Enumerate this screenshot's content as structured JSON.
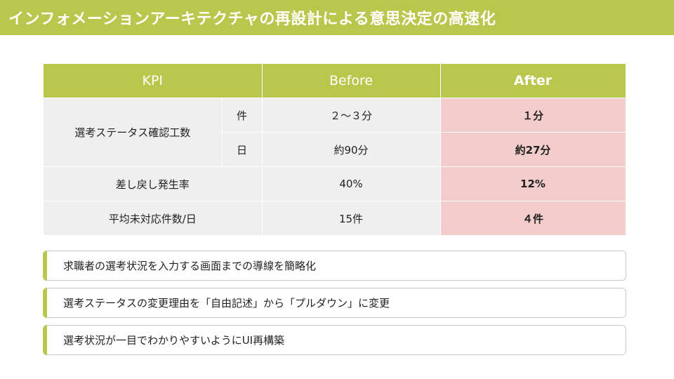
{
  "title": "インフォメーションアーキテクチャの再設計による意思決定の高速化",
  "table": {
    "headers": {
      "kpi": "KPI",
      "before": "Before",
      "after": "After"
    },
    "rows": [
      {
        "kpi": "選考ステータス確認工数",
        "unit": "件",
        "before": "２～３分",
        "after": "１分"
      },
      {
        "unit": "日",
        "before": "約90分",
        "after": "約27分"
      },
      {
        "kpi": "差し戻し発生率",
        "before": "40%",
        "after": "12%"
      },
      {
        "kpi": "平均未対応件数/日",
        "before": "15件",
        "after": "４件"
      }
    ]
  },
  "points": [
    "求職者の選考状況を入力する画面までの導線を簡略化",
    "選考ステータスの変更理由を「自由記述」から「プルダウン」に変更",
    "選考状況が一目でわかりやすいようにUI再構築"
  ],
  "colors": {
    "accent": "#b9c74c",
    "after_bg": "#f3cccc",
    "cell_bg": "#efefef"
  }
}
